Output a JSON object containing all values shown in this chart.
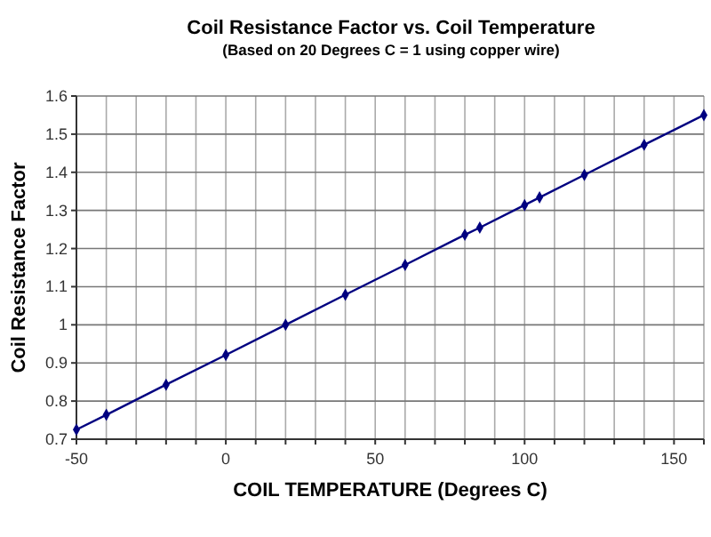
{
  "chart_data": {
    "type": "line",
    "title": "Coil Resistance Factor vs. Coil Temperature",
    "subtitle": "(Based on 20 Degrees C = 1 using copper wire)",
    "xlabel": "COIL TEMPERATURE (Degrees C)",
    "ylabel": "Coil Resistance Factor",
    "x": [
      -50,
      -40,
      -20,
      0,
      20,
      40,
      60,
      80,
      85,
      100,
      105,
      120,
      140,
      160
    ],
    "series": [
      {
        "color": "#000080",
        "values": [
          0.725,
          0.764,
          0.843,
          0.921,
          1,
          1.079,
          1.157,
          1.236,
          1.255,
          1.314,
          1.334,
          1.393,
          1.472,
          1.55
        ]
      }
    ],
    "xlim": [
      -50,
      160
    ],
    "xticks": [
      -50,
      {
        "value": -40,
        "label": null
      },
      {
        "value": -30,
        "label": null
      },
      {
        "value": -20,
        "label": null
      },
      {
        "value": -10,
        "label": null
      },
      0,
      {
        "value": 10,
        "label": null
      },
      {
        "value": 20,
        "label": null
      },
      {
        "value": 30,
        "label": null
      },
      {
        "value": 40,
        "label": null
      },
      50,
      {
        "value": 60,
        "label": null
      },
      {
        "value": 70,
        "label": null
      },
      {
        "value": 80,
        "label": null
      },
      {
        "value": 90,
        "label": null
      },
      100,
      {
        "value": 110,
        "label": null
      },
      {
        "value": 120,
        "label": null
      },
      {
        "value": 130,
        "label": null
      },
      {
        "value": 140,
        "label": null
      },
      150,
      {
        "value": 160,
        "label": null
      }
    ],
    "ylim": [
      0.7,
      1.6
    ],
    "yticks": [
      0.7,
      0.8,
      0.9,
      1,
      1.1,
      1.2,
      1.3,
      1.4,
      1.5,
      1.6
    ],
    "grid": true,
    "marker": "diamond",
    "line_style": "solid"
  }
}
